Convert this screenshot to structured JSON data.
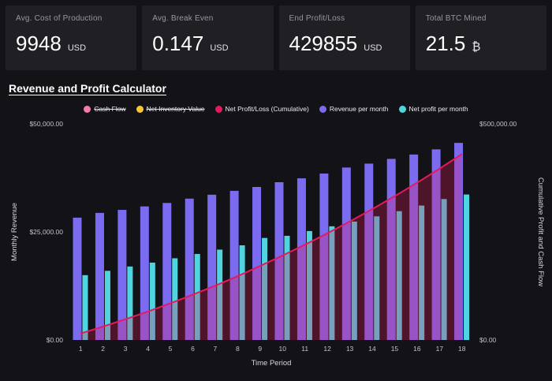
{
  "stats": [
    {
      "label": "Avg. Cost of Production",
      "value": "9948",
      "unit": "USD"
    },
    {
      "label": "Avg. Break Even",
      "value": "0.147",
      "unit": "USD"
    },
    {
      "label": "End Profit/Loss",
      "value": "429855",
      "unit": "USD"
    },
    {
      "label": "Total BTC Mined",
      "value": "21.5",
      "unit": "₿"
    }
  ],
  "section": {
    "title": "Revenue and Profit Calculator"
  },
  "colors": {
    "background": "#131317",
    "card_background": "#1f1f24",
    "revenue_bar": "#7a6bf0",
    "profit_bar": "#4ed5e0",
    "cumulative_line": "#e6195e",
    "cumulative_area": "rgba(230,25,94,0.28)",
    "cash_flow": "#f27da8",
    "net_inventory_value": "#fdc530",
    "axis_text": "#c2c2c8"
  },
  "chart_data": {
    "type": "bar",
    "title": "Revenue and Profit Calculator",
    "x": [
      1,
      2,
      3,
      4,
      5,
      6,
      7,
      8,
      9,
      10,
      11,
      12,
      13,
      14,
      15,
      16,
      17,
      18
    ],
    "x_label": "Time Period",
    "left_axis": {
      "label": "Monthly Revenue",
      "min": 0,
      "max": 50000,
      "ticks": [
        {
          "value": 0,
          "label": "$0.00"
        },
        {
          "value": 25000,
          "label": "$25,000.00"
        },
        {
          "value": 50000,
          "label": "$50,000.00"
        }
      ]
    },
    "right_axis": {
      "label": "Cumulative Profit and Cash Flow",
      "min": 0,
      "max": 500000,
      "ticks": [
        {
          "value": 0,
          "label": "$0.00"
        },
        {
          "value": 500000,
          "label": "$500,000.00"
        }
      ]
    },
    "series": [
      {
        "name": "Revenue per month",
        "type": "bar",
        "axis": "left",
        "color": "#7a6bf0",
        "values": [
          28300,
          29400,
          30100,
          30900,
          31700,
          32700,
          33600,
          34500,
          35400,
          36500,
          37400,
          38500,
          39900,
          40800,
          41900,
          42900,
          44100,
          45600
        ]
      },
      {
        "name": "Net profit per month",
        "type": "bar",
        "axis": "left",
        "color": "#4ed5e0",
        "values": [
          15000,
          16000,
          17000,
          17900,
          18900,
          19900,
          20900,
          21900,
          23600,
          24100,
          25200,
          26300,
          27400,
          28600,
          29800,
          31100,
          32600,
          33655
        ]
      },
      {
        "name": "Net Profit/Loss (Cumulative)",
        "type": "line",
        "axis": "right",
        "color": "#e6195e",
        "values": [
          15000,
          31000,
          48000,
          65900,
          84800,
          104700,
          125600,
          147500,
          171100,
          195200,
          220400,
          246700,
          274100,
          302700,
          332500,
          363600,
          396200,
          429855
        ]
      }
    ],
    "legend": [
      {
        "label": "Cash Flow",
        "color": "#f27da8",
        "disabled": true
      },
      {
        "label": "Net Inventory Value",
        "color": "#fdc530",
        "disabled": true
      },
      {
        "label": "Net Profit/Loss (Cumulative)",
        "color": "#e6195e",
        "disabled": false
      },
      {
        "label": "Revenue per month",
        "color": "#7a6bf0",
        "disabled": false
      },
      {
        "label": "Net profit per month",
        "color": "#4ed5e0",
        "disabled": false
      }
    ]
  }
}
